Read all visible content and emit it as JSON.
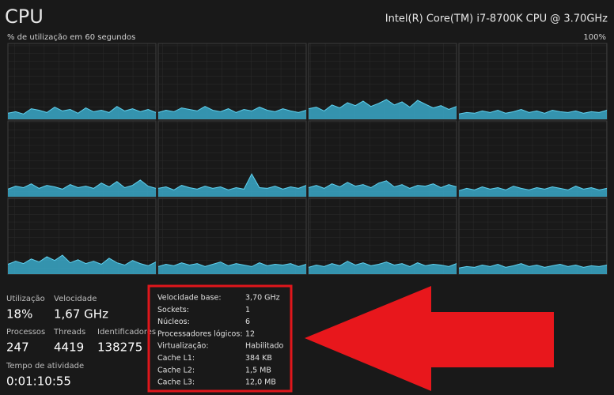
{
  "header": {
    "title": "CPU",
    "processor": "Intel(R) Core(TM) i7-8700K CPU @ 3.70GHz",
    "graph_caption": "% de utilização em 60 segundos",
    "graph_max": "100%"
  },
  "cpu_graphs": {
    "ylim": [
      0,
      100
    ],
    "fill": "#3aa9c9",
    "line": "#5fd0ee",
    "series": [
      [
        8,
        10,
        7,
        14,
        12,
        9,
        16,
        11,
        13,
        8,
        15,
        10,
        12,
        9,
        17,
        11,
        14,
        10,
        13,
        9
      ],
      [
        9,
        12,
        10,
        15,
        13,
        11,
        17,
        12,
        10,
        14,
        9,
        13,
        11,
        16,
        12,
        10,
        14,
        11,
        9,
        12
      ],
      [
        14,
        16,
        11,
        19,
        15,
        22,
        18,
        24,
        17,
        21,
        26,
        19,
        23,
        16,
        25,
        20,
        15,
        18,
        13,
        17
      ],
      [
        7,
        9,
        8,
        11,
        9,
        12,
        8,
        10,
        13,
        9,
        11,
        8,
        12,
        10,
        9,
        11,
        8,
        10,
        9,
        12
      ],
      [
        10,
        14,
        12,
        17,
        11,
        15,
        13,
        10,
        16,
        12,
        14,
        11,
        18,
        13,
        20,
        12,
        15,
        22,
        14,
        11
      ],
      [
        11,
        13,
        9,
        15,
        12,
        10,
        14,
        11,
        13,
        9,
        12,
        10,
        30,
        12,
        11,
        14,
        10,
        13,
        11,
        15
      ],
      [
        12,
        15,
        11,
        17,
        13,
        19,
        14,
        16,
        12,
        18,
        21,
        13,
        16,
        11,
        15,
        14,
        17,
        12,
        16,
        13
      ],
      [
        8,
        11,
        9,
        13,
        10,
        12,
        9,
        14,
        11,
        9,
        12,
        10,
        13,
        11,
        9,
        14,
        10,
        12,
        9,
        11
      ],
      [
        13,
        17,
        14,
        20,
        16,
        23,
        18,
        25,
        15,
        19,
        14,
        17,
        13,
        21,
        15,
        12,
        18,
        14,
        11,
        16
      ],
      [
        10,
        13,
        11,
        15,
        12,
        14,
        10,
        13,
        16,
        11,
        14,
        12,
        10,
        15,
        11,
        13,
        12,
        14,
        10,
        13
      ],
      [
        9,
        12,
        10,
        14,
        11,
        17,
        12,
        15,
        11,
        13,
        16,
        12,
        14,
        10,
        15,
        11,
        13,
        12,
        10,
        14
      ],
      [
        8,
        10,
        9,
        12,
        10,
        13,
        9,
        11,
        14,
        10,
        12,
        9,
        11,
        13,
        10,
        12,
        9,
        11,
        10,
        12
      ]
    ]
  },
  "stats": [
    {
      "label": "Utilização",
      "value": "18%"
    },
    {
      "label": "Velocidade",
      "value": "1,67 GHz"
    },
    {
      "label": "Processos",
      "value": "247"
    },
    {
      "label": "Threads",
      "value": "4419"
    },
    {
      "label": "Identificadores",
      "value": "138275"
    },
    {
      "label": "Tempo de atividade",
      "value": "0:01:10:55"
    }
  ],
  "details": [
    {
      "label": "Velocidade base:",
      "value": "3,70 GHz"
    },
    {
      "label": "Sockets:",
      "value": "1"
    },
    {
      "label": "Núcleos:",
      "value": "6"
    },
    {
      "label": "Processadores lógicos:",
      "value": "12"
    },
    {
      "label": "Virtualização:",
      "value": "Habilitado"
    },
    {
      "label": "Cache L1:",
      "value": "384 KB"
    },
    {
      "label": "Cache L2:",
      "value": "1,5 MB"
    },
    {
      "label": "Cache L3:",
      "value": "12,0 MB"
    }
  ]
}
